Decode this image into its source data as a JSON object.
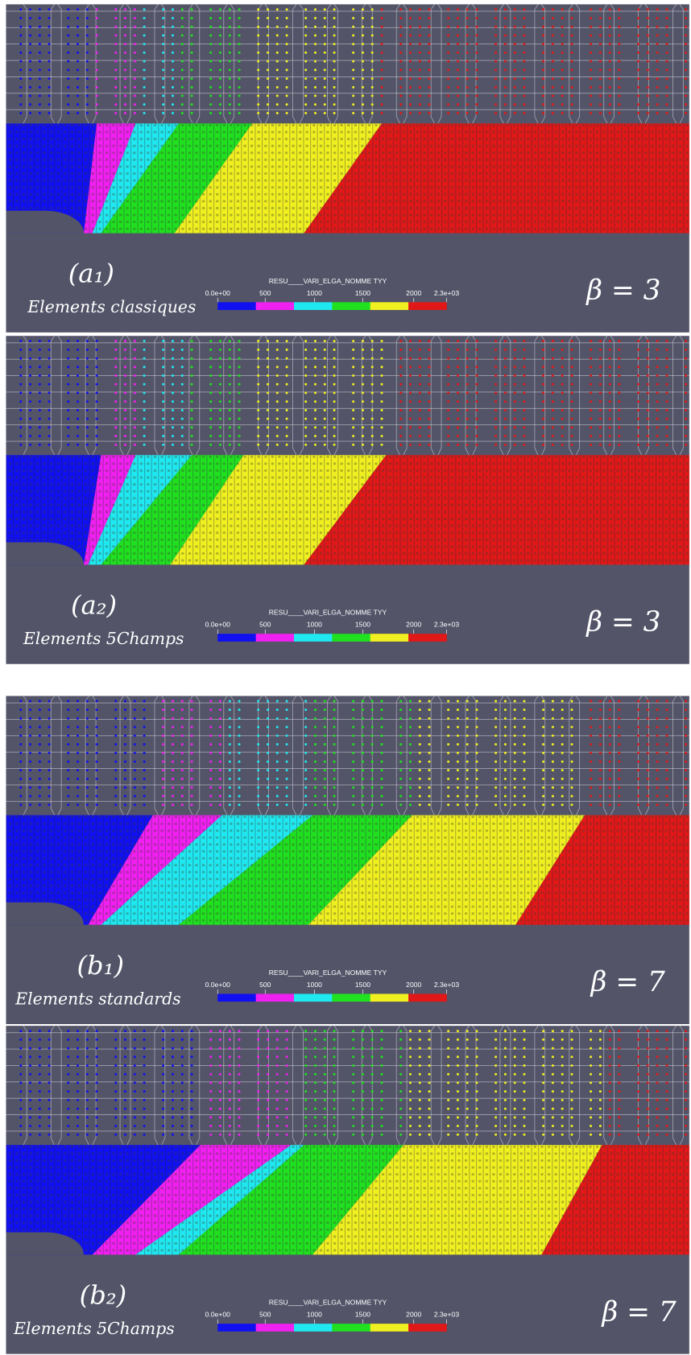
{
  "panels": [
    {
      "label": "(a₁)",
      "subtitle": "Elements classiques",
      "beta": "β = 3"
    },
    {
      "label": "(a₂)",
      "subtitle": "Elements 5Champs",
      "beta": "β = 3"
    },
    {
      "label": "(b₁)",
      "subtitle": "Elements standards",
      "beta": "β = 7"
    },
    {
      "label": "(b₂)",
      "subtitle": "Elements 5Champs",
      "beta": "β = 7"
    }
  ],
  "colorbar": {
    "title": "RESU____VARI_ELGA_NOMME TYY",
    "ticks": [
      "0.0e+00",
      "500",
      "1000",
      "1500",
      "2000",
      "2.3e+03"
    ]
  }
}
